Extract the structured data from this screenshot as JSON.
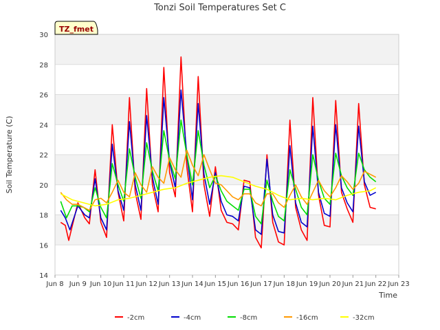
{
  "chart_data": {
    "type": "line",
    "title": "Tonzi Soil Temperatures Set C",
    "xlabel": "Time",
    "ylabel": "Soil Temperature (C)",
    "ylim": [
      14,
      30
    ],
    "xlim": [
      8,
      23
    ],
    "yticks": [
      14,
      16,
      18,
      20,
      22,
      24,
      26,
      28,
      30
    ],
    "xticks": [
      {
        "v": 8,
        "label": "Jun 8"
      },
      {
        "v": 9,
        "label": "Jun 9"
      },
      {
        "v": 10,
        "label": "Jun 10"
      },
      {
        "v": 11,
        "label": "Jun 11"
      },
      {
        "v": 12,
        "label": "Jun 12"
      },
      {
        "v": 13,
        "label": "Jun 13"
      },
      {
        "v": 14,
        "label": "Jun 14"
      },
      {
        "v": 15,
        "label": "Jun 15"
      },
      {
        "v": 16,
        "label": "Jun 16"
      },
      {
        "v": 17,
        "label": "Jun 17"
      },
      {
        "v": 18,
        "label": "Jun 18"
      },
      {
        "v": 19,
        "label": "Jun 19"
      },
      {
        "v": 20,
        "label": "Jun 20"
      },
      {
        "v": 21,
        "label": "Jun 21"
      },
      {
        "v": 22,
        "label": "Jun 22"
      },
      {
        "v": 23,
        "label": "Jun 23"
      }
    ],
    "grid": true,
    "legend_position": "bottom",
    "annotation": "TZ_fmet",
    "series": [
      {
        "name": "-2cm",
        "color": "#ff0000",
        "x": [
          8.25,
          8.45,
          8.6,
          9.0,
          9.3,
          9.5,
          9.75,
          10.0,
          10.25,
          10.5,
          10.75,
          11.0,
          11.25,
          11.5,
          11.75,
          12.0,
          12.25,
          12.5,
          12.75,
          13.0,
          13.25,
          13.5,
          13.75,
          14.0,
          14.25,
          14.5,
          14.75,
          15.0,
          15.25,
          15.5,
          15.75,
          16.0,
          16.25,
          16.5,
          16.75,
          17.0,
          17.25,
          17.5,
          17.75,
          18.0,
          18.25,
          18.5,
          18.75,
          19.0,
          19.25,
          19.5,
          19.75,
          20.0,
          20.25,
          20.5,
          20.75,
          21.0,
          21.25,
          21.5,
          21.75,
          22.0
        ],
        "y": [
          17.5,
          17.3,
          16.3,
          18.8,
          17.8,
          17.4,
          21.0,
          17.5,
          16.5,
          24.0,
          19.5,
          17.6,
          25.8,
          19.5,
          17.7,
          26.4,
          20.0,
          18.2,
          27.8,
          20.8,
          19.2,
          28.5,
          21.2,
          18.2,
          27.2,
          20.0,
          17.9,
          21.2,
          18.3,
          17.5,
          17.4,
          17.0,
          20.3,
          20.2,
          16.5,
          15.8,
          22.0,
          17.5,
          16.2,
          16.0,
          24.3,
          18.5,
          17.0,
          16.3,
          25.8,
          19.3,
          17.3,
          17.2,
          25.6,
          19.5,
          18.4,
          17.5,
          25.4,
          20.0,
          18.5,
          18.4
        ]
      },
      {
        "name": "-4cm",
        "color": "#0000cc",
        "x": [
          8.25,
          8.45,
          8.65,
          9.0,
          9.3,
          9.5,
          9.75,
          10.0,
          10.25,
          10.5,
          10.75,
          11.0,
          11.25,
          11.5,
          11.75,
          12.0,
          12.25,
          12.5,
          12.75,
          13.0,
          13.25,
          13.5,
          13.75,
          14.0,
          14.25,
          14.5,
          14.75,
          15.0,
          15.25,
          15.5,
          15.75,
          16.0,
          16.25,
          16.5,
          16.75,
          17.0,
          17.25,
          17.5,
          17.75,
          18.0,
          18.25,
          18.5,
          18.75,
          19.0,
          19.25,
          19.5,
          19.75,
          20.0,
          20.25,
          20.5,
          20.75,
          21.0,
          21.25,
          21.5,
          21.75,
          22.0
        ],
        "y": [
          18.3,
          17.8,
          17.0,
          18.6,
          18.0,
          17.8,
          20.4,
          17.8,
          17.0,
          22.7,
          19.6,
          18.3,
          24.2,
          20.0,
          18.3,
          24.6,
          20.5,
          18.7,
          25.8,
          21.5,
          19.8,
          26.3,
          22.0,
          19.0,
          25.4,
          20.7,
          18.7,
          20.8,
          18.9,
          18.0,
          17.9,
          17.6,
          19.9,
          19.8,
          17.0,
          16.7,
          21.7,
          18.0,
          16.9,
          16.8,
          22.6,
          18.8,
          17.5,
          17.2,
          23.9,
          19.5,
          18.1,
          17.9,
          24.0,
          19.8,
          18.8,
          18.2,
          23.9,
          20.2,
          19.3,
          19.5
        ]
      },
      {
        "name": "-8cm",
        "color": "#00dd00",
        "x": [
          8.25,
          8.5,
          8.75,
          9.0,
          9.25,
          9.5,
          9.75,
          10.0,
          10.25,
          10.5,
          10.75,
          11.0,
          11.25,
          11.5,
          11.75,
          12.0,
          12.25,
          12.5,
          12.75,
          13.0,
          13.25,
          13.5,
          13.75,
          14.0,
          14.25,
          14.5,
          14.75,
          15.0,
          15.25,
          15.5,
          15.75,
          16.0,
          16.25,
          16.5,
          16.75,
          17.0,
          17.25,
          17.5,
          17.75,
          18.0,
          18.25,
          18.5,
          18.75,
          19.0,
          19.25,
          19.5,
          19.75,
          20.0,
          20.25,
          20.5,
          20.75,
          21.0,
          21.25,
          21.5,
          21.75,
          22.0
        ],
        "y": [
          18.9,
          17.8,
          18.6,
          18.6,
          18.5,
          18.2,
          19.8,
          18.5,
          17.8,
          21.4,
          20.0,
          18.9,
          22.4,
          20.5,
          19.1,
          22.8,
          20.9,
          19.6,
          23.6,
          21.6,
          20.4,
          24.3,
          22.0,
          20.0,
          23.6,
          21.3,
          19.8,
          20.6,
          19.6,
          18.9,
          18.6,
          18.3,
          19.7,
          19.7,
          17.9,
          17.4,
          20.3,
          18.9,
          17.9,
          17.6,
          21.0,
          19.7,
          18.5,
          18.0,
          22.0,
          20.3,
          19.1,
          18.7,
          22.1,
          20.6,
          19.8,
          19.3,
          22.1,
          21.0,
          20.5,
          20.2
        ]
      },
      {
        "name": "-16cm",
        "color": "#ff9900",
        "x": [
          8.25,
          8.5,
          8.75,
          9.0,
          9.25,
          9.5,
          9.75,
          10.0,
          10.25,
          10.5,
          10.75,
          11.0,
          11.25,
          11.5,
          11.75,
          12.0,
          12.25,
          12.5,
          12.75,
          13.0,
          13.25,
          13.5,
          13.75,
          14.0,
          14.25,
          14.5,
          14.75,
          15.0,
          15.25,
          15.5,
          15.75,
          16.0,
          16.25,
          16.5,
          16.75,
          17.0,
          17.25,
          17.5,
          17.75,
          18.0,
          18.25,
          18.5,
          18.75,
          19.0,
          19.25,
          19.5,
          19.75,
          20.0,
          20.25,
          20.5,
          20.75,
          21.0,
          21.25,
          21.5,
          21.75,
          22.0
        ],
        "y": [
          19.5,
          19.0,
          18.7,
          18.7,
          18.5,
          18.3,
          19.0,
          19.1,
          18.8,
          19.5,
          20.3,
          19.5,
          19.2,
          20.8,
          20.0,
          19.5,
          21.2,
          20.5,
          20.1,
          21.8,
          21.0,
          20.5,
          22.3,
          21.3,
          20.6,
          22.0,
          21.0,
          20.1,
          20.0,
          19.6,
          19.2,
          19.0,
          19.4,
          19.4,
          18.8,
          18.6,
          19.4,
          19.4,
          18.8,
          18.5,
          19.3,
          20.0,
          19.2,
          18.7,
          19.5,
          20.3,
          19.6,
          19.2,
          19.8,
          20.6,
          20.2,
          19.7,
          20.1,
          20.9,
          20.7,
          20.5
        ]
      },
      {
        "name": "-32cm",
        "color": "#ffff00",
        "x": [
          8.25,
          8.75,
          9.25,
          9.75,
          10.25,
          10.75,
          11.25,
          11.75,
          12.25,
          12.75,
          13.25,
          13.75,
          14.25,
          14.75,
          15.25,
          15.75,
          16.25,
          16.75,
          17.25,
          17.75,
          18.25,
          18.75,
          19.25,
          19.75,
          20.25,
          20.75,
          21.25,
          21.75,
          22.0
        ],
        "y": [
          19.4,
          19.0,
          18.8,
          18.6,
          18.7,
          19.0,
          19.1,
          19.3,
          19.5,
          19.7,
          19.8,
          20.1,
          20.3,
          20.5,
          20.6,
          20.5,
          20.2,
          19.9,
          19.7,
          19.3,
          19.0,
          19.1,
          19.0,
          19.1,
          19.0,
          19.3,
          19.5,
          19.6,
          19.8
        ]
      }
    ]
  }
}
